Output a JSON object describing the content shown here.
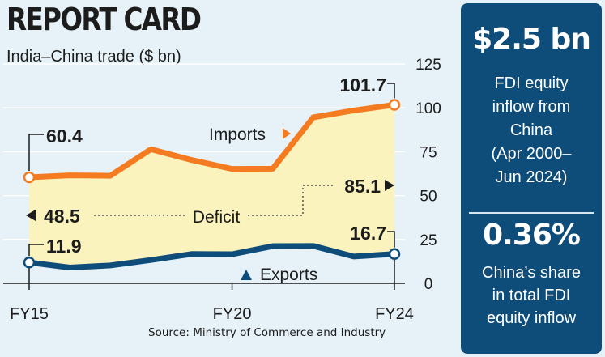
{
  "chart_data": {
    "type": "area",
    "title": "REPORT CARD",
    "subtitle": "India–China trade ($ bn)",
    "source": "Source: Ministry of Commerce and Industry",
    "x": [
      2015,
      2016,
      2017,
      2018,
      2019,
      2020,
      2021,
      2022,
      2023,
      2024
    ],
    "x_tick_labels": [
      "FY15",
      "FY20",
      "FY24"
    ],
    "x_tick_values": [
      2015,
      2020,
      2024
    ],
    "ylim": [
      0,
      125
    ],
    "y_ticks": [
      "0",
      "25",
      "50",
      "75",
      "100",
      "125"
    ],
    "y_tick_values": [
      0,
      25,
      50,
      75,
      100,
      125
    ],
    "series": [
      {
        "name": "Imports",
        "color": "#f47b20",
        "values": [
          60.4,
          61.5,
          61.3,
          76.4,
          70.3,
          65.2,
          65.3,
          94.6,
          98.5,
          101.7
        ]
      },
      {
        "name": "Exports",
        "color": "#0e4c7a",
        "values": [
          11.9,
          9.0,
          10.2,
          13.3,
          16.7,
          16.6,
          21.2,
          21.3,
          15.3,
          16.7
        ]
      }
    ],
    "fill_label": "Deficit",
    "fill_color": "#fbf3bd",
    "annotations": {
      "imports_start": "60.4",
      "imports_end": "101.7",
      "exports_start": "11.9",
      "exports_end": "16.7",
      "deficit_start": "48.5",
      "deficit_end": "85.1",
      "imports_label": "Imports",
      "exports_label": "Exports",
      "deficit_label": "Deficit"
    }
  },
  "sidebar": {
    "fdi_value": "$2.5 bn",
    "fdi_description": "FDI equity\ninflow from\nChina\n(Apr 2000–\nJun 2024)",
    "share_value": "0.36%",
    "share_description": "China’s share\nin total FDI\nequity inflow"
  }
}
